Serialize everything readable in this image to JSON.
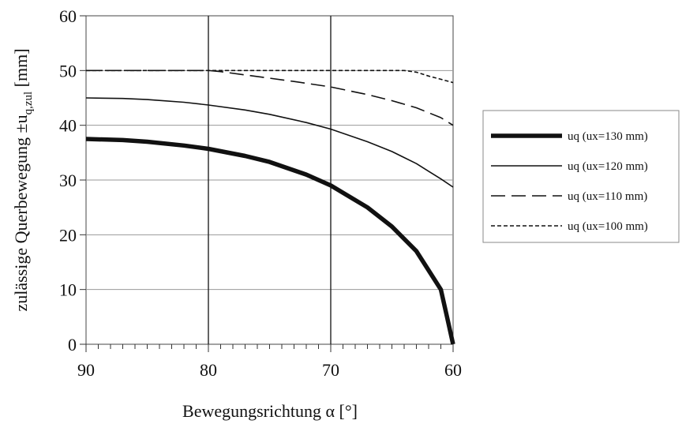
{
  "chart_data": {
    "type": "line",
    "xlabel": "Bewegungsrichtung α [°]",
    "ylabel": {
      "prefix": "zulässige Querbewegung ±u",
      "subscript": "q,zul",
      "suffix": " [mm]"
    },
    "xlim": [
      90,
      60
    ],
    "ylim": [
      0,
      60
    ],
    "x_ticks": [
      "90",
      "80",
      "70",
      "60"
    ],
    "y_ticks": [
      "0",
      "10",
      "20",
      "30",
      "40",
      "50",
      "60"
    ],
    "grid": "horizontal every 10 mm; vertical at 80 and 70",
    "legend_position": "right",
    "series": [
      {
        "name": "uq (ux=130 mm)",
        "style": "thick",
        "x": [
          90,
          87,
          85,
          82,
          80,
          77,
          75,
          72,
          70,
          67,
          65,
          63,
          62,
          61,
          60.5,
          60
        ],
        "y": [
          37.5,
          37.3,
          37.0,
          36.3,
          35.7,
          34.4,
          33.3,
          31.0,
          29.0,
          25.0,
          21.5,
          17.0,
          13.5,
          10.0,
          5.0,
          0
        ]
      },
      {
        "name": "uq (ux=120 mm)",
        "style": "solid",
        "x": [
          90,
          87,
          85,
          82,
          80,
          77,
          75,
          72,
          70,
          67,
          65,
          63,
          62,
          61,
          60
        ],
        "y": [
          45.0,
          44.9,
          44.7,
          44.2,
          43.7,
          42.8,
          42.0,
          40.5,
          39.3,
          37.0,
          35.2,
          33.0,
          31.6,
          30.2,
          28.7
        ]
      },
      {
        "name": "uq (ux=110 mm)",
        "style": "dashed",
        "x": [
          90,
          85,
          80,
          79,
          77,
          75,
          73,
          70,
          67,
          65,
          63,
          61,
          60
        ],
        "y": [
          50.0,
          50.0,
          50.0,
          49.8,
          49.2,
          48.6,
          48.0,
          47.0,
          45.6,
          44.5,
          43.2,
          41.4,
          40.0
        ]
      },
      {
        "name": "uq (ux=100 mm)",
        "style": "dotted",
        "x": [
          90,
          80,
          70,
          64,
          63,
          62,
          61,
          60
        ],
        "y": [
          50.0,
          50.0,
          50.0,
          50.0,
          49.7,
          49.0,
          48.4,
          47.8
        ]
      }
    ]
  }
}
